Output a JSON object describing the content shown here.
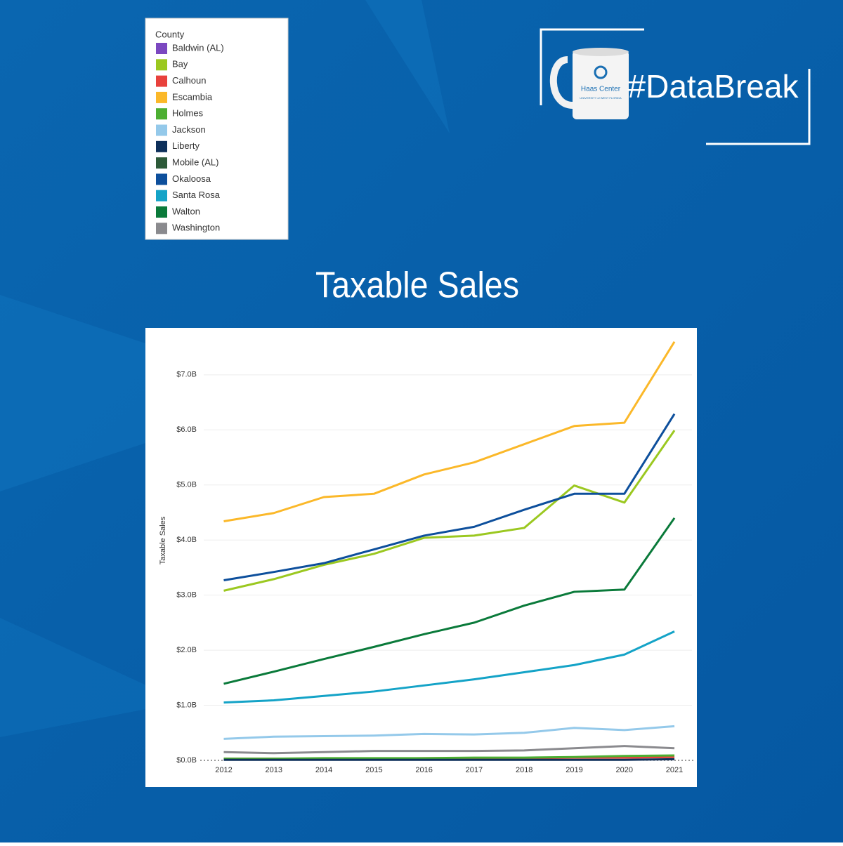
{
  "logo": {
    "hashtag": "#DataBreak",
    "mug_title": "Haas Center",
    "mug_subtitle": "UNIVERSITY of WEST FLORIDA"
  },
  "chart_data": {
    "type": "line",
    "title": "Taxable Sales",
    "y_label": "Taxable Sales",
    "legend_title": "County",
    "legend": "top-left",
    "x": [
      2012,
      2013,
      2014,
      2015,
      2016,
      2017,
      2018,
      2019,
      2020,
      2021
    ],
    "xlim": [
      2011.6,
      2021.35
    ],
    "xticks": [
      2012,
      2013,
      2014,
      2015,
      2016,
      2017,
      2018,
      2019,
      2020,
      2021
    ],
    "ylim": [
      0,
      7.75
    ],
    "yticks": [
      {
        "value": 0,
        "label": "$0.0B"
      },
      {
        "value": 1,
        "label": "$1.0B"
      },
      {
        "value": 2,
        "label": "$2.0B"
      },
      {
        "value": 3,
        "label": "$3.0B"
      },
      {
        "value": 4,
        "label": "$4.0B"
      },
      {
        "value": 5,
        "label": "$5.0B"
      },
      {
        "value": 6,
        "label": "$6.0B"
      },
      {
        "value": 7,
        "label": "$7.0B"
      }
    ],
    "grid": true,
    "series": [
      {
        "name": "Baldwin (AL)",
        "color": "#7b48c0",
        "values": [
          null,
          null,
          null,
          null,
          null,
          null,
          null,
          null,
          null,
          null
        ]
      },
      {
        "name": "Bay",
        "color": "#9bc820",
        "values": [
          3.08,
          3.29,
          3.55,
          3.75,
          4.04,
          4.08,
          4.22,
          4.99,
          4.68,
          5.99
        ]
      },
      {
        "name": "Calhoun",
        "color": "#e8413c",
        "values": [
          0.03,
          0.03,
          0.03,
          0.03,
          0.04,
          0.04,
          0.04,
          0.05,
          0.05,
          0.06
        ]
      },
      {
        "name": "Escambia",
        "color": "#fbb829",
        "values": [
          4.34,
          4.49,
          4.78,
          4.84,
          5.19,
          5.41,
          5.74,
          6.07,
          6.13,
          7.6
        ]
      },
      {
        "name": "Holmes",
        "color": "#4caf32",
        "values": [
          0.03,
          0.03,
          0.04,
          0.04,
          0.04,
          0.05,
          0.05,
          0.06,
          0.08,
          0.09
        ]
      },
      {
        "name": "Jackson",
        "color": "#94c9ea",
        "values": [
          0.39,
          0.43,
          0.44,
          0.45,
          0.48,
          0.47,
          0.5,
          0.59,
          0.55,
          0.62
        ]
      },
      {
        "name": "Liberty",
        "color": "#0d2f5a",
        "values": [
          0.01,
          0.01,
          0.01,
          0.01,
          0.01,
          0.01,
          0.01,
          0.01,
          0.01,
          0.02
        ]
      },
      {
        "name": "Mobile (AL)",
        "color": "#2d5a39",
        "values": [
          null,
          null,
          null,
          null,
          null,
          null,
          null,
          null,
          null,
          null
        ]
      },
      {
        "name": "Okaloosa",
        "color": "#0d4f9c",
        "values": [
          3.27,
          3.42,
          3.58,
          3.83,
          4.08,
          4.24,
          4.55,
          4.84,
          4.84,
          6.29
        ]
      },
      {
        "name": "Santa Rosa",
        "color": "#14a3c7",
        "values": [
          1.05,
          1.09,
          1.17,
          1.25,
          1.36,
          1.47,
          1.6,
          1.73,
          1.92,
          2.34
        ]
      },
      {
        "name": "Walton",
        "color": "#0a7a3a",
        "values": [
          1.39,
          1.61,
          1.84,
          2.06,
          2.29,
          2.5,
          2.81,
          3.06,
          3.1,
          4.4
        ]
      },
      {
        "name": "Washington",
        "color": "#8a8a8e",
        "values": [
          0.15,
          0.13,
          0.15,
          0.17,
          0.17,
          0.17,
          0.18,
          0.22,
          0.26,
          0.22
        ]
      }
    ]
  }
}
